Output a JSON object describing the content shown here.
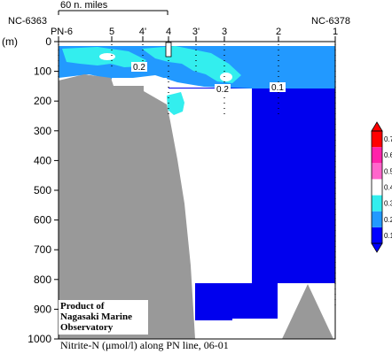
{
  "chart_data": {
    "type": "heatmap",
    "title": "Nitrite-N (μmol/l) along PN line, 06-01",
    "caption": {
      "variable": "Nitrite-N (",
      "unit_mu": "μ",
      "unit_rest": "mol/l) along PN line, 06-01"
    },
    "credit": [
      "Product of",
      "Nagasaki Marine",
      "Observatory"
    ],
    "ylabel": "(m)",
    "ylim": [
      0,
      1000
    ],
    "y_ticks": [
      0,
      100,
      200,
      300,
      400,
      500,
      600,
      700,
      800,
      900,
      1000
    ],
    "scale_bar_label": "60 n. miles",
    "end_stations": {
      "left": "NC-6363",
      "right": "NC-6378"
    },
    "stations": [
      "PN-6",
      "5",
      "4'",
      "4",
      "3'",
      "3",
      "2",
      "1"
    ],
    "station_sample_depths": [
      {
        "station": "PN-6",
        "max_depth": 120
      },
      {
        "station": "5",
        "max_depth": 90
      },
      {
        "station": "4'",
        "max_depth": 100
      },
      {
        "station": "4",
        "max_depth": 250
      },
      {
        "station": "3'",
        "max_depth": 100
      },
      {
        "station": "3",
        "max_depth": 250
      },
      {
        "station": "2",
        "max_depth": 250
      },
      {
        "station": "1",
        "max_depth": 900
      }
    ],
    "contour_labels": [
      "0.2",
      "0.2",
      "0.1"
    ],
    "colorbar": {
      "ticks": [
        0.1,
        0.2,
        0.3,
        0.4,
        0.5,
        0.6,
        0.7
      ],
      "colors": [
        "#0000ff",
        "#2299ff",
        "#33eeee",
        "#ffffff",
        "#ff66cc",
        "#ff22aa",
        "#ff0000"
      ]
    },
    "grid": false
  }
}
